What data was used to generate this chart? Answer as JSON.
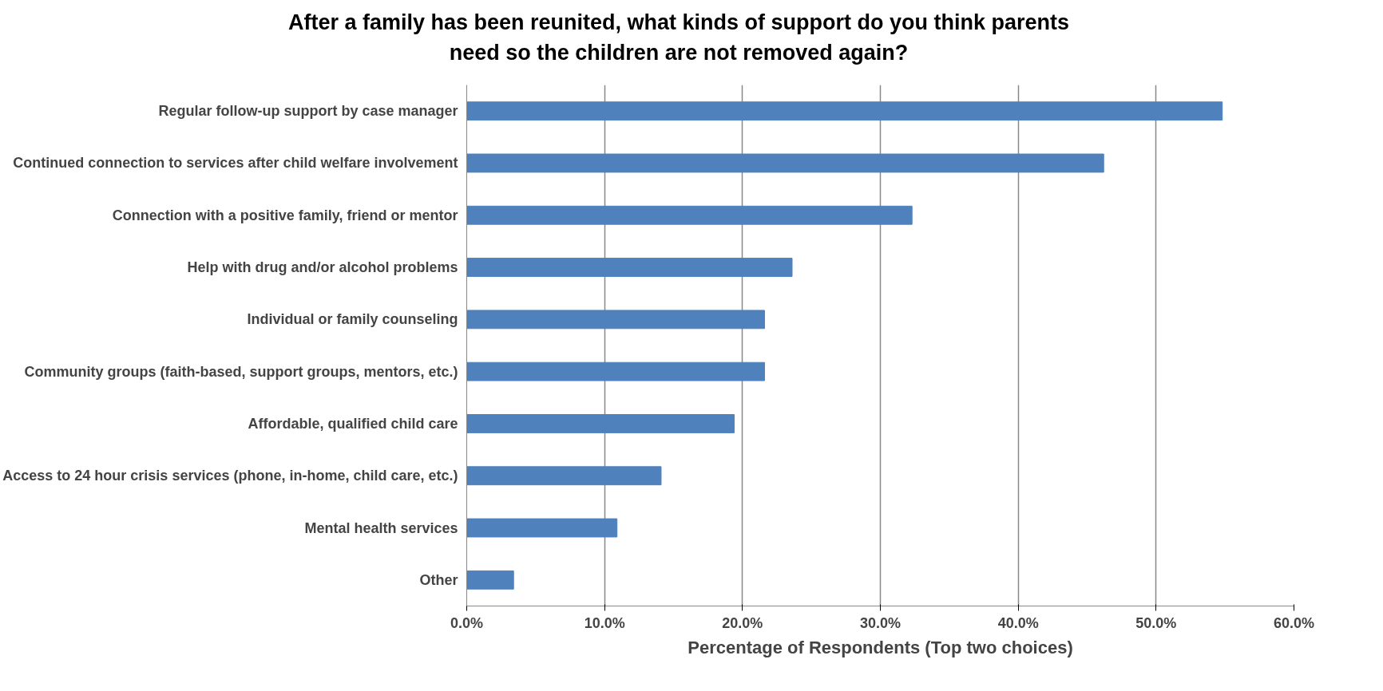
{
  "chart_data": {
    "type": "bar",
    "orientation": "horizontal",
    "title": "After a family has been reunited, what kinds of support do you think parents need so the children are not removed again?",
    "xlabel": "Percentage of Respondents (Top two choices)",
    "categories": [
      "Regular follow-up support by case manager",
      "Continued connection to services after child welfare involvement",
      "Connection with a positive family, friend or mentor",
      "Help with drug and/or alcohol problems",
      "Individual or family counseling",
      "Community groups (faith-based, support groups, mentors, etc.)",
      "Affordable, qualified child care",
      "Access to 24 hour crisis services (phone, in-home, child care, etc.)",
      "Mental health services",
      "Other"
    ],
    "values": [
      54.8,
      46.2,
      32.3,
      23.6,
      21.6,
      21.6,
      19.4,
      14.1,
      10.9,
      3.4
    ],
    "color": "#4f81bd",
    "xlim": [
      0,
      60
    ],
    "xticks": [
      {
        "value": 0,
        "label": "0.0%"
      },
      {
        "value": 10,
        "label": "10.0%"
      },
      {
        "value": 20,
        "label": "20.0%"
      },
      {
        "value": 30,
        "label": "30.0%"
      },
      {
        "value": 40,
        "label": "40.0%"
      },
      {
        "value": 50,
        "label": "50.0%"
      },
      {
        "value": 60,
        "label": "60.0%"
      }
    ],
    "grid": "x"
  }
}
